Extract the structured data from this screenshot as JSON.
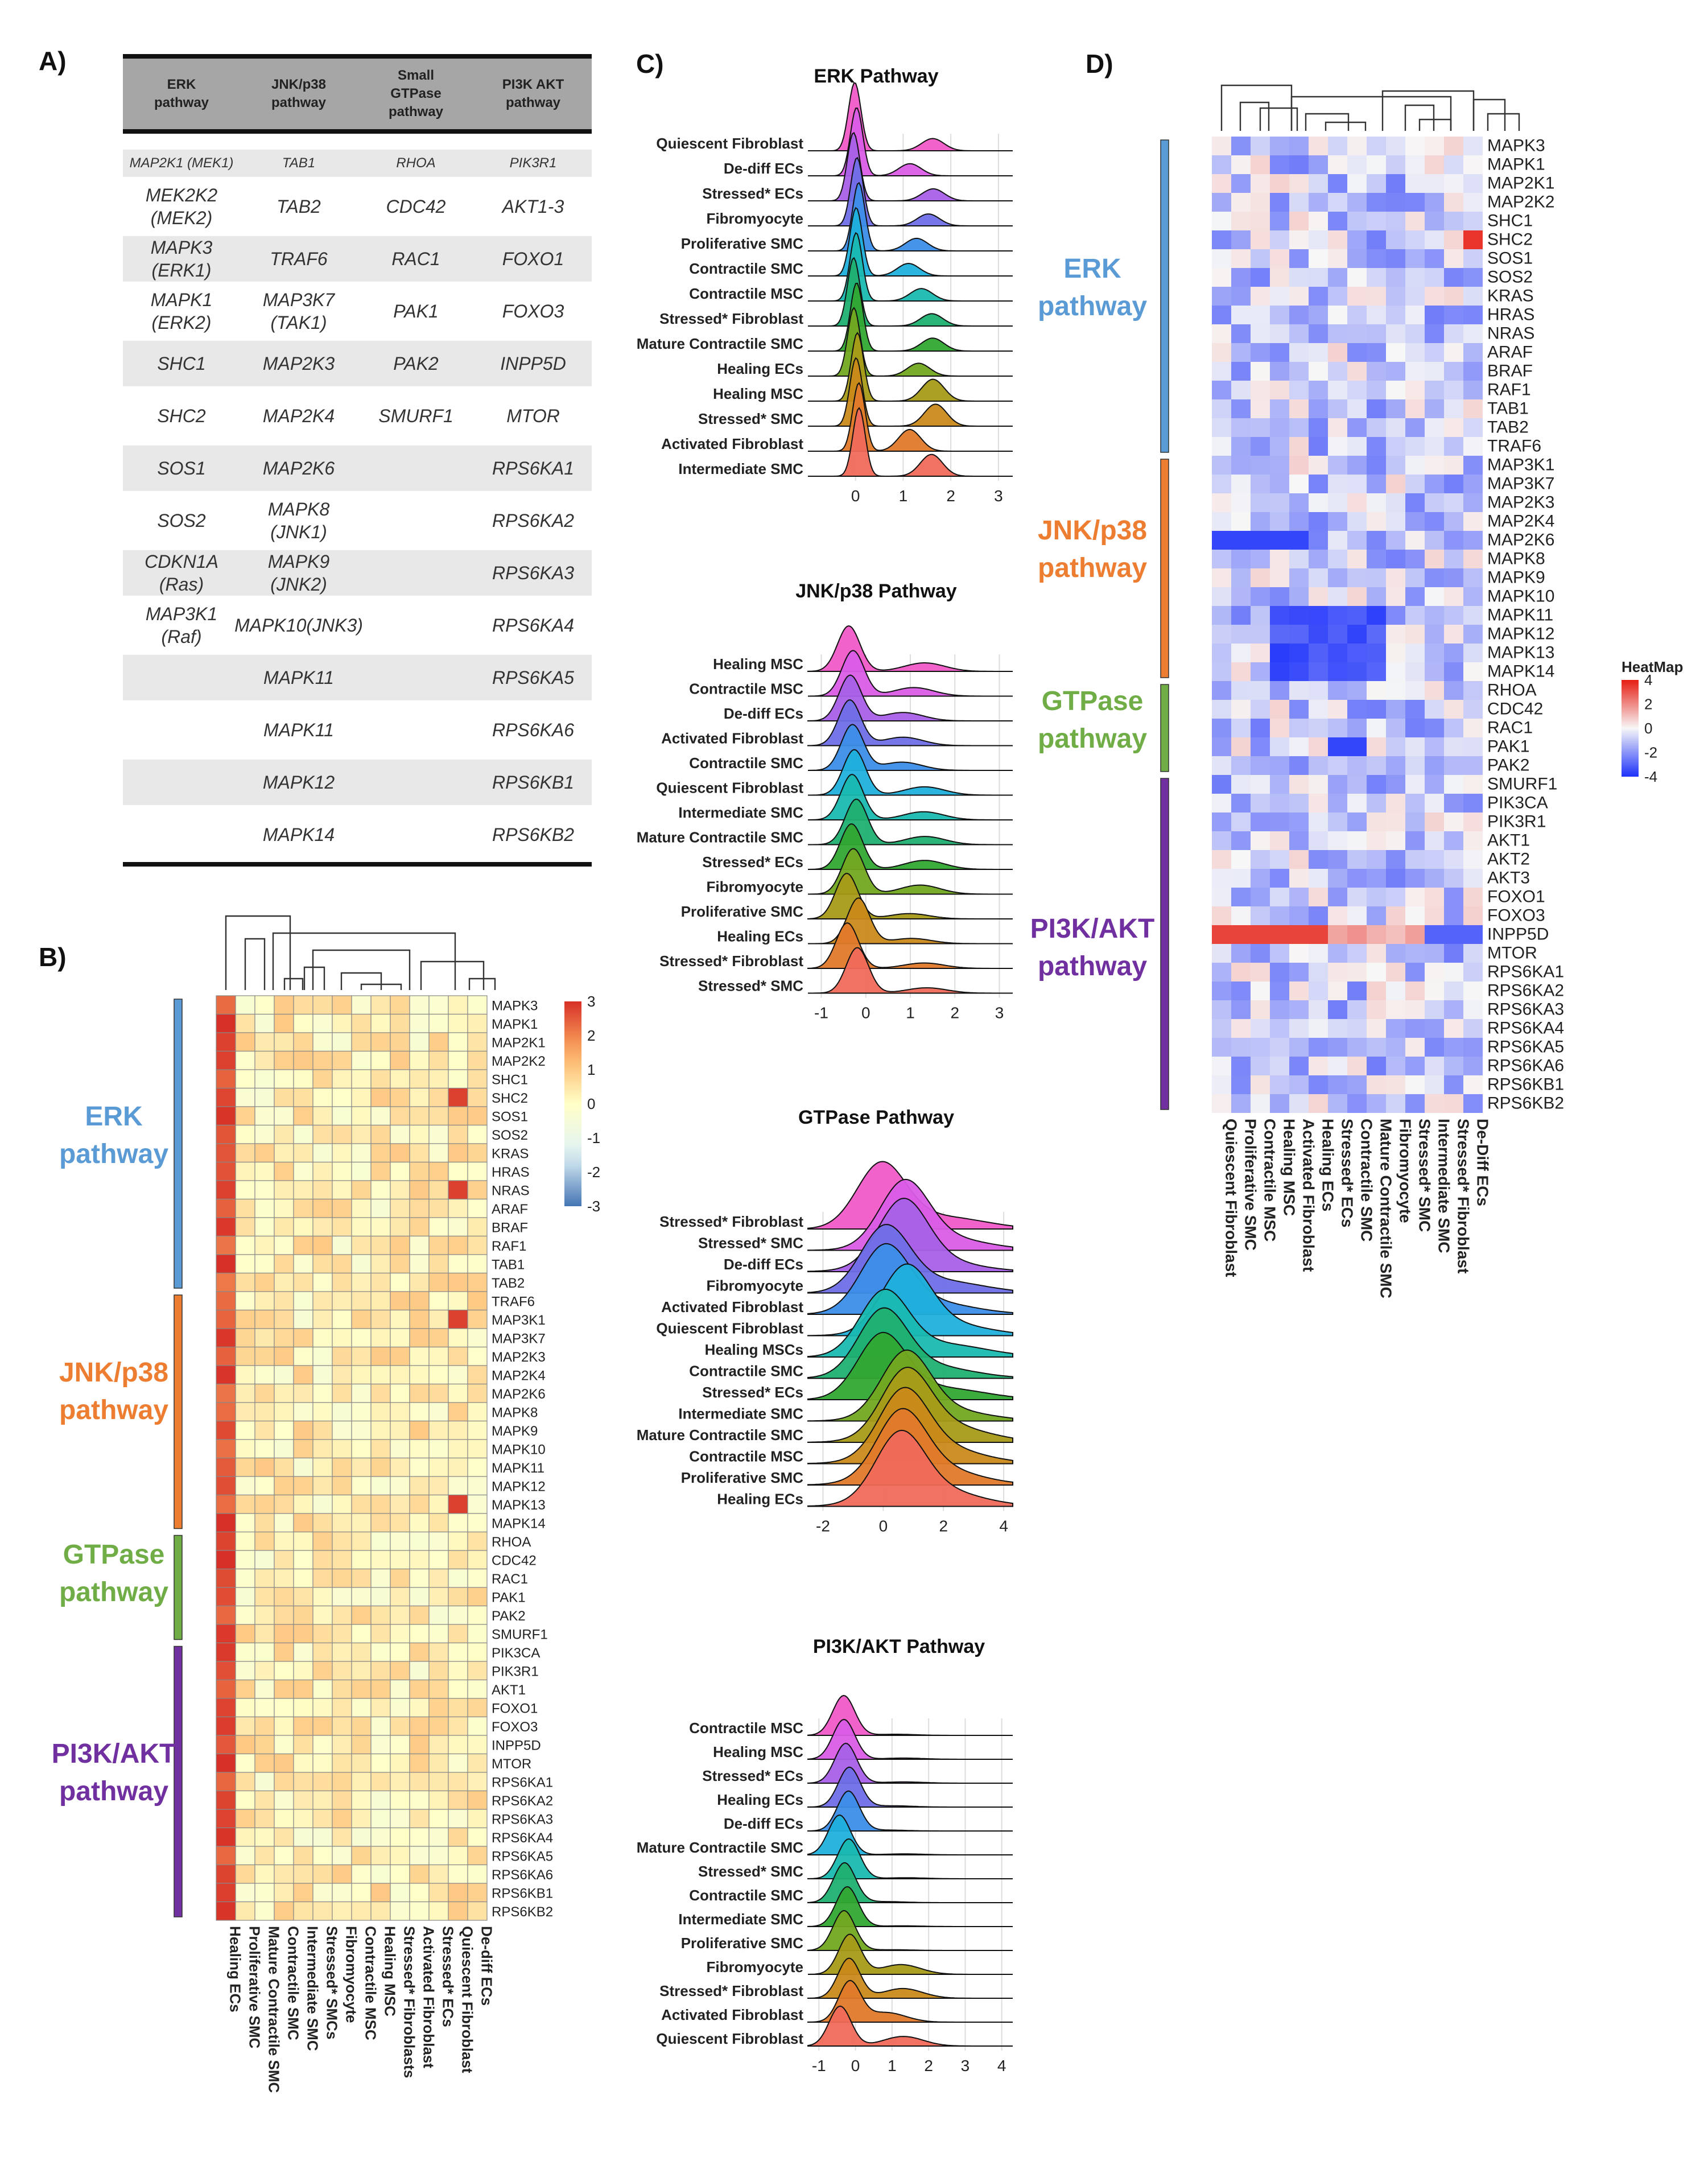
{
  "panels": {
    "a": "A)",
    "b": "B)",
    "c": "C)",
    "d": "D)"
  },
  "pathway_colors": {
    "erk": "#5b9bd5",
    "jnk": "#ed7d31",
    "gtpase": "#70ad47",
    "pi3k": "#7030a0"
  },
  "heatmap_b_labels": {
    "erk": "ERK pathway",
    "jnk": "JNK/p38 pathway",
    "gtpase": "GTPase pathway",
    "pi3k": "PI3K/AKT pathway"
  },
  "heatmap_d_labels": {
    "erk": "ERK pathway",
    "jnk": "JNK/p38 pathway",
    "gtpase": "GTPase pathway",
    "pi3k": "PI3K/AKT pathway"
  },
  "table_a": {
    "headers": [
      "ERK pathway",
      "JNK/p38 pathway",
      "Small GTPase pathway",
      "PI3K AKT pathway"
    ],
    "rows": [
      [
        "MAP2K1 (MEK1)",
        "TAB1",
        "RHOA",
        "PIK3R1"
      ],
      [
        "MEK2K2 (MEK2)",
        "TAB2",
        "CDC42",
        "AKT1-3"
      ],
      [
        "MAPK3 (ERK1)",
        "TRAF6",
        "RAC1",
        "FOXO1"
      ],
      [
        "MAPK1 (ERK2)",
        "MAP3K7 (TAK1)",
        "PAK1",
        "FOXO3"
      ],
      [
        "SHC1",
        "MAP2K3",
        "PAK2",
        "INPP5D"
      ],
      [
        "SHC2",
        "MAP2K4",
        "SMURF1",
        "MTOR"
      ],
      [
        "SOS1",
        "MAP2K6",
        "",
        "RPS6KA1"
      ],
      [
        "SOS2",
        "MAPK8 (JNK1)",
        "",
        "RPS6KA2"
      ],
      [
        "CDKN1A (Ras)",
        "MAPK9 (JNK2)",
        "",
        "RPS6KA3"
      ],
      [
        "MAP3K1 (Raf)",
        "MAPK10(JNK3)",
        "",
        "RPS6KA4"
      ],
      [
        "",
        "MAPK11",
        "",
        "RPS6KA5"
      ],
      [
        "",
        "MAPK11",
        "",
        "RPS6KA6"
      ],
      [
        "",
        "MAPK12",
        "",
        "RPS6KB1"
      ],
      [
        "",
        "MAPK14",
        "",
        "RPS6KB2"
      ]
    ]
  },
  "chart_data": [
    {
      "id": "B",
      "type": "heatmap",
      "rows": [
        "MAPK3",
        "MAPK1",
        "MAP2K1",
        "MAP2K2",
        "SHC1",
        "SHC2",
        "SOS1",
        "SOS2",
        "KRAS",
        "HRAS",
        "NRAS",
        "ARAF",
        "BRAF",
        "RAF1",
        "TAB1",
        "TAB2",
        "TRAF6",
        "MAP3K1",
        "MAP3K7",
        "MAP2K3",
        "MAP2K4",
        "MAP2K6",
        "MAPK8",
        "MAPK9",
        "MAPK10",
        "MAPK11",
        "MAPK12",
        "MAPK13",
        "MAPK14",
        "RHOA",
        "CDC42",
        "RAC1",
        "PAK1",
        "PAK2",
        "SMURF1",
        "PIK3CA",
        "PIK3R1",
        "AKT1",
        "FOXO1",
        "FOXO3",
        "INPP5D",
        "MTOR",
        "RPS6KA1",
        "RPS6KA2",
        "RPS6KA3",
        "RPS6KA4",
        "RPS6KA5",
        "RPS6KA6",
        "RPS6KB1",
        "RPS6KB2"
      ],
      "columns": [
        "Healing ECs",
        "Proliferative SMC",
        "Mature Contractile SMC",
        "Contractile SMC",
        "Intermediate SMC",
        "Stressed* SMCs",
        "Fibromyocyte",
        "Contractile MSC",
        "Healing MSC",
        "Stressed* Fibroblasts",
        "Activated Fibroblast",
        "Stressed* ECs",
        "Quiescent Fibroblast",
        "De-diff ECs"
      ],
      "colorbar": {
        "min": -3,
        "max": 3,
        "ticks": [
          "3",
          "2",
          "1",
          "0",
          "-1",
          "-2",
          "-3"
        ]
      },
      "groups": [
        {
          "name": "ERK pathway",
          "count": 16
        },
        {
          "name": "JNK/p38 pathway",
          "count": 13
        },
        {
          "name": "GTPase pathway",
          "count": 6
        },
        {
          "name": "PI3K/AKT pathway",
          "count": 15
        }
      ],
      "values": []
    },
    {
      "id": "D",
      "type": "heatmap",
      "rows": [
        "MAPK3",
        "MAPK1",
        "MAP2K1",
        "MAP2K2",
        "SHC1",
        "SHC2",
        "SOS1",
        "SOS2",
        "KRAS",
        "HRAS",
        "NRAS",
        "ARAF",
        "BRAF",
        "RAF1",
        "TAB1",
        "TAB2",
        "TRAF6",
        "MAP3K1",
        "MAP3K7",
        "MAP2K3",
        "MAP2K4",
        "MAP2K6",
        "MAPK8",
        "MAPK9",
        "MAPK10",
        "MAPK11",
        "MAPK12",
        "MAPK13",
        "MAPK14",
        "RHOA",
        "CDC42",
        "RAC1",
        "PAK1",
        "PAK2",
        "SMURF1",
        "PIK3CA",
        "PIK3R1",
        "AKT1",
        "AKT2",
        "AKT3",
        "FOXO1",
        "FOXO3",
        "INPP5D",
        "MTOR",
        "RPS6KA1",
        "RPS6KA2",
        "RPS6KA3",
        "RPS6KA4",
        "RPS6KA5",
        "RPS6KA6",
        "RPS6KB1",
        "RPS6KB2"
      ],
      "columns": [
        "Quiescent Fibroblast",
        "Proliferative SMC",
        "Contractile MSC",
        "Healing MSC",
        "Activated Fibroblast",
        "Healing ECs",
        "Stressed* ECs",
        "Contractile SMC",
        "Mature Contractile SMC",
        "Fibromyocyte",
        "Stressed* SMC",
        "Intermediate SMC",
        "Stressed* Fibroblast",
        "De-Diff ECs"
      ],
      "colorbar": {
        "title": "HeatMap",
        "min": -4,
        "max": 4,
        "ticks": [
          "4",
          "2",
          "0",
          "-2",
          "-4"
        ]
      },
      "groups": [
        {
          "name": "ERK pathway",
          "count": 17
        },
        {
          "name": "JNK/p38 pathway",
          "count": 12
        },
        {
          "name": "GTPase pathway",
          "count": 5
        },
        {
          "name": "PI3K/AKT pathway",
          "count": 18
        }
      ],
      "values": [],
      "significance": []
    },
    {
      "id": "C1",
      "type": "ridgeline",
      "title": "ERK Pathway",
      "categories": [
        "Quiescent Fibroblast",
        "De-diff ECs",
        "Stressed* ECs",
        "Fibromyocyte",
        "Proliferative SMC",
        "Contractile SMC",
        "Contractile MSC",
        "Stressed* Fibroblast",
        "Mature Contractile SMC",
        "Healing ECs",
        "Healing MSC",
        "Stressed* SMC",
        "Activated Fibroblast",
        "Intermediate SMC"
      ],
      "xlim": [
        -1,
        3.3
      ],
      "xticks": [
        "0",
        "1",
        "2",
        "3"
      ],
      "peak": 0,
      "spread": 0.13
    },
    {
      "id": "C2",
      "type": "ridgeline",
      "title": "JNK/p38 Pathway",
      "categories": [
        "Healing MSC",
        "Contractile MSC",
        "De-diff ECs",
        "Activated Fibroblast",
        "Contractile SMC",
        "Quiescent Fibroblast",
        "Intermediate SMC",
        "Mature Contractile SMC",
        "Stressed* ECs",
        "Fibromyocyte",
        "Proliferative SMC",
        "Healing ECs",
        "Stressed* Fibroblast",
        "Stressed* SMC"
      ],
      "xlim": [
        -1.3,
        3.3
      ],
      "xticks": [
        "-1",
        "0",
        "1",
        "2",
        "3"
      ],
      "peak": -0.3,
      "spread": 0.25
    },
    {
      "id": "C3",
      "type": "ridgeline",
      "title": "GTPase Pathway",
      "categories": [
        "Stressed* Fibroblast",
        "Stressed* SMC",
        "De-diff ECs",
        "Fibromyocyte",
        "Activated Fibroblast",
        "Quiescent Fibroblast",
        "Healing MSCs",
        "Contractile SMC",
        "Stressed* ECs",
        "Intermediate SMC",
        "Mature Contractile SMC",
        "Contractile MSC",
        "Proliferative SMC",
        "Healing ECs"
      ],
      "xlim": [
        -2.5,
        4.3
      ],
      "xticks": [
        "-2",
        "0",
        "2",
        "4"
      ],
      "peak": 0.3,
      "spread": 0.8
    },
    {
      "id": "C4",
      "type": "ridgeline",
      "title": "PI3K/AKT Pathway",
      "categories": [
        "Contractile MSC",
        "Healing MSC",
        "Stressed* ECs",
        "Healing ECs",
        "De-diff ECs",
        "Mature Contractile SMC",
        "Stressed* SMC",
        "Contractile SMC",
        "Intermediate SMC",
        "Proliferative SMC",
        "Fibromyocyte",
        "Stressed* Fibroblast",
        "Activated Fibroblast",
        "Quiescent Fibroblast"
      ],
      "xlim": [
        -1.3,
        4.3
      ],
      "xticks": [
        "-1",
        "0",
        "1",
        "2",
        "3",
        "4"
      ],
      "peak": -0.3,
      "spread": 0.3
    }
  ]
}
